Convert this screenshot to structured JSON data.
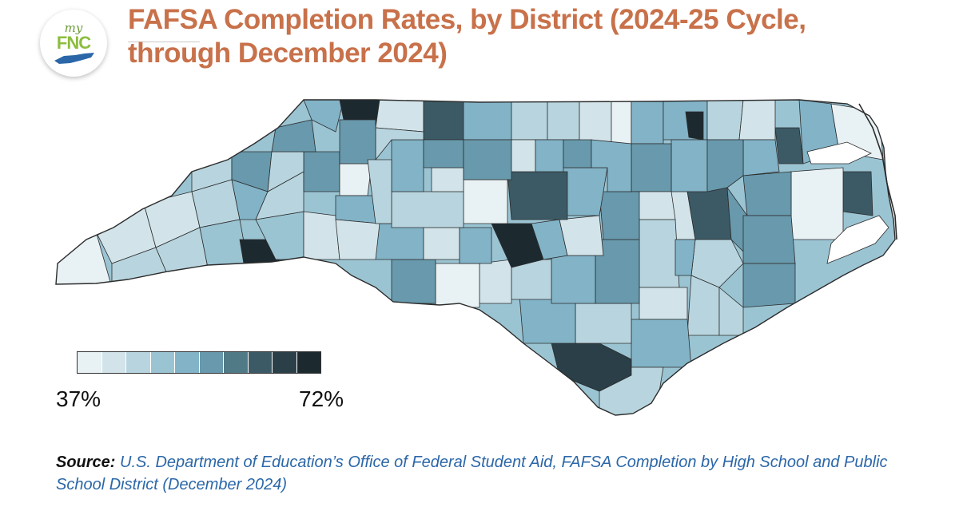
{
  "header": {
    "logo": {
      "prefix": "my",
      "brand": "FNC",
      "accent_color": "#8cbd3f",
      "state_shape_color": "#2b67a8"
    },
    "title_line1": "FAFSA Completion Rates, by District (2024-25 Cycle,",
    "title_line2": "through December 2024)",
    "title_color": "#c8714a"
  },
  "map": {
    "type": "choropleth",
    "region": "North Carolina public school districts",
    "outline_color": "#2c2c2c"
  },
  "legend": {
    "min_label": "37%",
    "max_label": "72%",
    "colors": [
      "#e8f1f4",
      "#d2e4ea",
      "#b8d5df",
      "#9bc4d3",
      "#82b3c7",
      "#6899ac",
      "#517a87",
      "#3c5a65",
      "#2a3f47",
      "#1c2a30"
    ]
  },
  "source": {
    "label": "Source:",
    "text": "U.S. Department of Education’s Office of Federal Student Aid, FAFSA Completion by High School and Public School District (December 2024)",
    "text_color": "#2b67a8"
  }
}
